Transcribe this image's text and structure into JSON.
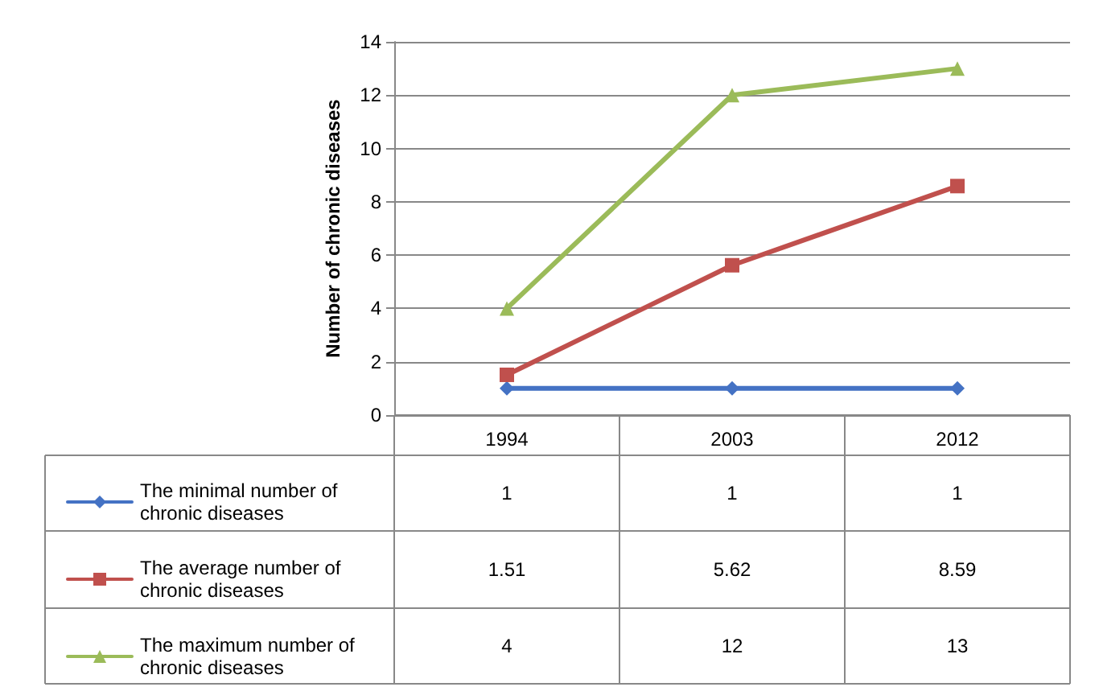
{
  "chart_data": {
    "type": "line",
    "ylabel": "Number of chronic diseases",
    "categories": [
      "1994",
      "2003",
      "2012"
    ],
    "series": [
      {
        "name": "The minimal number of chronic diseases",
        "color": "#4472c4",
        "marker": "diamond",
        "values": [
          1,
          1,
          1
        ]
      },
      {
        "name": "The average number of chronic diseases",
        "color": "#c0504d",
        "marker": "square",
        "values": [
          1.51,
          5.62,
          8.59
        ]
      },
      {
        "name": "The maximum number of chronic diseases",
        "color": "#9bbb59",
        "marker": "triangle",
        "values": [
          4,
          12,
          13
        ]
      }
    ],
    "ylim": [
      0,
      14
    ],
    "yticks": [
      0,
      2,
      4,
      6,
      8,
      10,
      12,
      14
    ],
    "grid": "y",
    "legend": "bottom left",
    "data_labels": true,
    "line_style": "solid"
  }
}
